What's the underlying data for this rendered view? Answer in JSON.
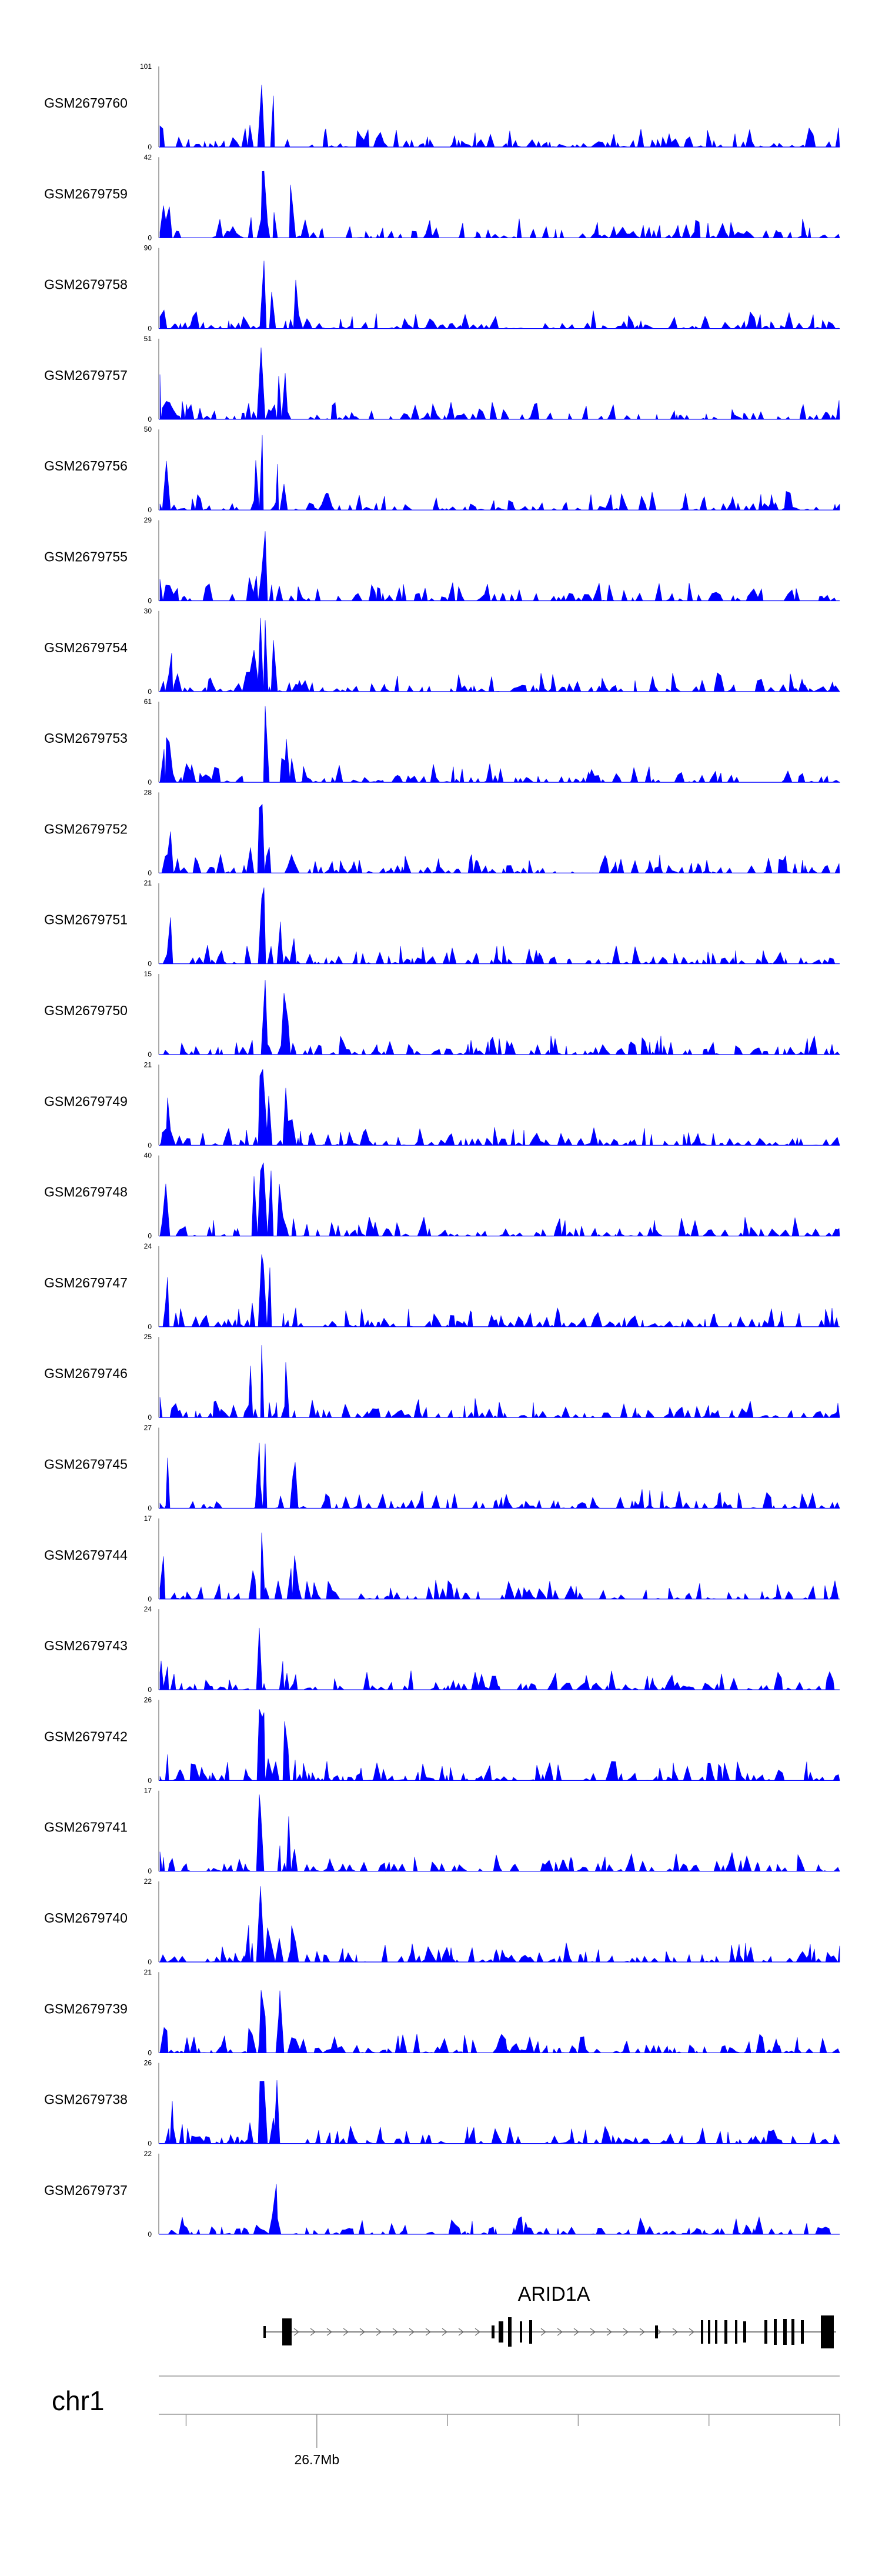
{
  "chart_data": {
    "type": "area",
    "title": "",
    "xlabel": "",
    "ylabel": "",
    "track_color": "#0000ff",
    "x_range_mb": [
      26.67,
      26.8
    ],
    "series": [
      {
        "name": "GSM2679760",
        "max": 101,
        "min": 0
      },
      {
        "name": "GSM2679759",
        "max": 42,
        "min": 0
      },
      {
        "name": "GSM2679758",
        "max": 90,
        "min": 0
      },
      {
        "name": "GSM2679757",
        "max": 51,
        "min": 0
      },
      {
        "name": "GSM2679756",
        "max": 50,
        "min": 0
      },
      {
        "name": "GSM2679755",
        "max": 29,
        "min": 0
      },
      {
        "name": "GSM2679754",
        "max": 30,
        "min": 0
      },
      {
        "name": "GSM2679753",
        "max": 61,
        "min": 0
      },
      {
        "name": "GSM2679752",
        "max": 28,
        "min": 0
      },
      {
        "name": "GSM2679751",
        "max": 21,
        "min": 0
      },
      {
        "name": "GSM2679750",
        "max": 15,
        "min": 0
      },
      {
        "name": "GSM2679749",
        "max": 21,
        "min": 0
      },
      {
        "name": "GSM2679748",
        "max": 40,
        "min": 0
      },
      {
        "name": "GSM2679747",
        "max": 24,
        "min": 0
      },
      {
        "name": "GSM2679746",
        "max": 25,
        "min": 0
      },
      {
        "name": "GSM2679745",
        "max": 27,
        "min": 0
      },
      {
        "name": "GSM2679744",
        "max": 17,
        "min": 0
      },
      {
        "name": "GSM2679743",
        "max": 24,
        "min": 0
      },
      {
        "name": "GSM2679742",
        "max": 26,
        "min": 0
      },
      {
        "name": "GSM2679741",
        "max": 17,
        "min": 0
      },
      {
        "name": "GSM2679740",
        "max": 22,
        "min": 0
      },
      {
        "name": "GSM2679739",
        "max": 21,
        "min": 0
      },
      {
        "name": "GSM2679738",
        "max": 26,
        "min": 0
      },
      {
        "name": "GSM2679737",
        "max": 22,
        "min": 0
      }
    ],
    "gene": {
      "name": "ARID1A",
      "strand": "+",
      "exon_count": 20
    },
    "chromosome": "chr1",
    "axis_ticks": [
      {
        "label": "",
        "mb": 26.675
      },
      {
        "label": "26.7Mb",
        "mb": 26.7
      },
      {
        "label": "",
        "mb": 26.725
      },
      {
        "label": "",
        "mb": 26.75
      },
      {
        "label": "",
        "mb": 26.775
      },
      {
        "label": "",
        "mb": 26.8
      }
    ]
  }
}
